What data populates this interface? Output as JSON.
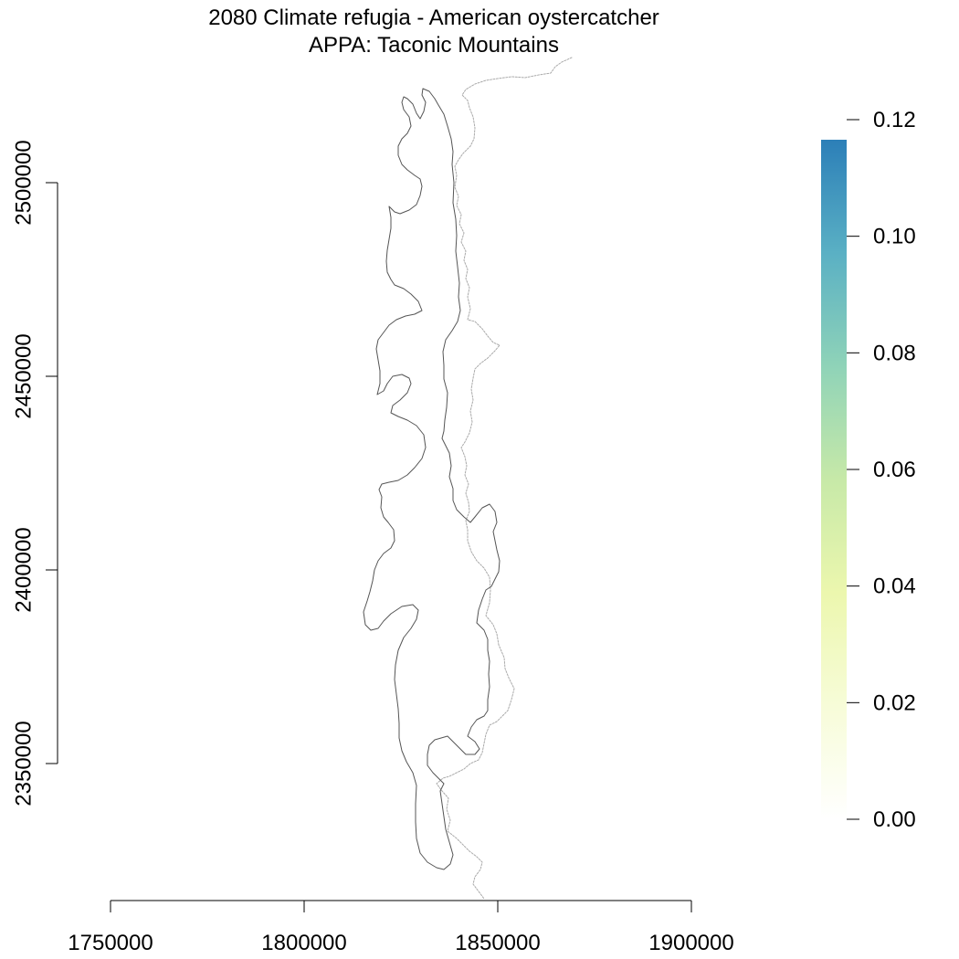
{
  "title": {
    "line1": "2080 Climate refugia - American oystercatcher",
    "line2": "APPA: Taconic Mountains"
  },
  "chart_data": {
    "type": "map",
    "x_ticks": [
      {
        "value": 1750000,
        "label": "1750000"
      },
      {
        "value": 1800000,
        "label": "1800000"
      },
      {
        "value": 1850000,
        "label": "1850000"
      },
      {
        "value": 1900000,
        "label": "1900000"
      }
    ],
    "y_ticks": [
      {
        "value": 2350000,
        "label": "2350000"
      },
      {
        "value": 2400000,
        "label": "2400000"
      },
      {
        "value": 2450000,
        "label": "2450000"
      },
      {
        "value": 2500000,
        "label": "2500000"
      }
    ],
    "xlim": [
      1750000,
      1900000
    ],
    "ylim": [
      2350000,
      2500000
    ],
    "legend": {
      "position": "right",
      "min": 0,
      "max": 0.12,
      "ticks": [
        {
          "value": 0.0,
          "label": "0.00"
        },
        {
          "value": 0.02,
          "label": "0.02"
        },
        {
          "value": 0.04,
          "label": "0.04"
        },
        {
          "value": 0.06,
          "label": "0.06"
        },
        {
          "value": 0.08,
          "label": "0.08"
        },
        {
          "value": 0.1,
          "label": "0.10"
        },
        {
          "value": 0.12,
          "label": "0.12"
        }
      ],
      "colors": [
        "#ffffff",
        "#f7fcd8",
        "#ecf7ae",
        "#c7e9a8",
        "#8fd3b8",
        "#5ab0c4",
        "#2c7fb8"
      ]
    },
    "region_outline_color": "#555555",
    "boundary_line_color": "#aaaaaa"
  }
}
